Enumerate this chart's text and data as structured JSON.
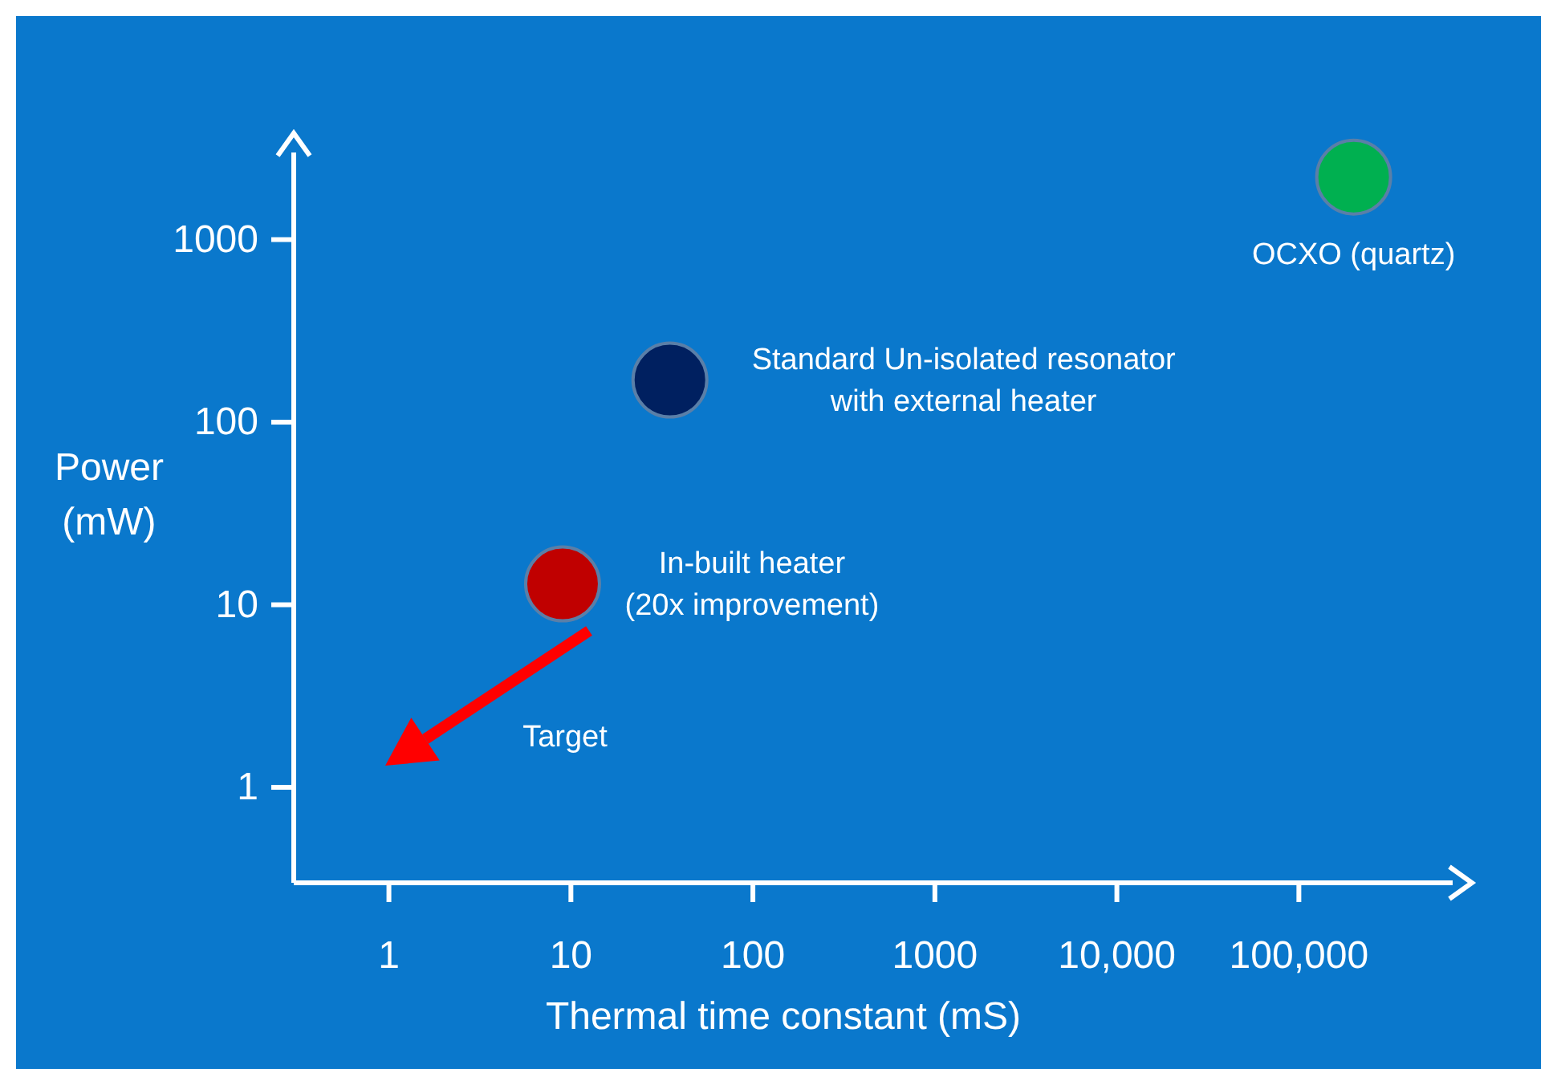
{
  "chart_data": {
    "type": "scatter",
    "xlabel": "Thermal time constant (mS)",
    "ylabel": "Power (mW)",
    "x": [
      9,
      35,
      200000
    ],
    "values": [
      13,
      170,
      2200
    ],
    "colors": [
      "#c00000",
      "#002060",
      "#00b050"
    ],
    "marker": "circle",
    "log": "xy",
    "xlim": [
      0.3,
      700000
    ],
    "ylim": [
      0.3,
      3000
    ],
    "xticks": [
      1,
      10,
      100,
      1000,
      {
        "value": 10000,
        "label": "10,000"
      },
      {
        "value": 100000,
        "label": "100,000"
      }
    ],
    "yticks": [
      1,
      10,
      100,
      1000
    ],
    "grid": false,
    "annotations": [
      {
        "text": "In-built heater\n(20x improvement)",
        "x": 9,
        "y": 13
      },
      {
        "text": "Standard Un-isolated resonator\nwith external heater",
        "x": 35,
        "y": 170
      },
      {
        "text": "OCXO (quartz)",
        "x": 200000,
        "y": 2200
      },
      "Target"
    ]
  }
}
